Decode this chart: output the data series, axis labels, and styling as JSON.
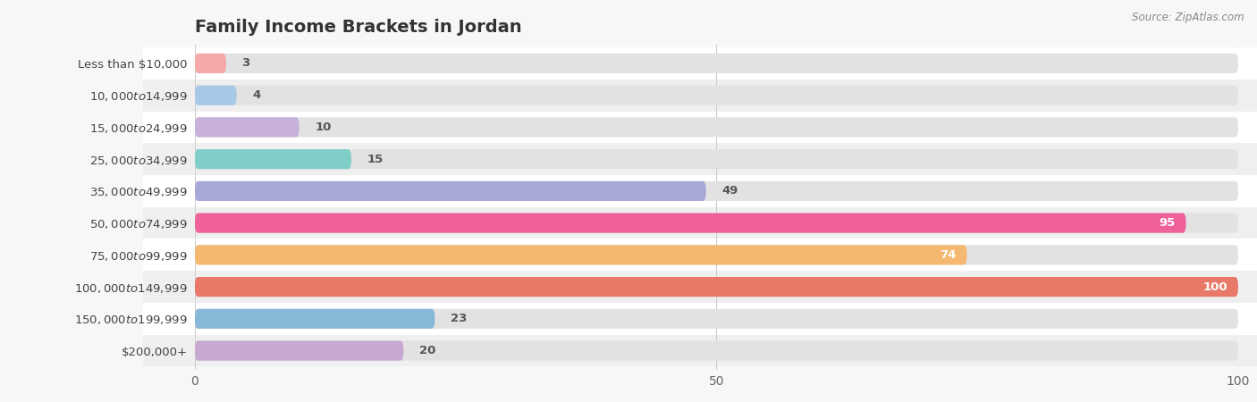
{
  "title": "Family Income Brackets in Jordan",
  "source": "Source: ZipAtlas.com",
  "categories": [
    "Less than $10,000",
    "$10,000 to $14,999",
    "$15,000 to $24,999",
    "$25,000 to $34,999",
    "$35,000 to $49,999",
    "$50,000 to $74,999",
    "$75,000 to $99,999",
    "$100,000 to $149,999",
    "$150,000 to $199,999",
    "$200,000+"
  ],
  "values": [
    3,
    4,
    10,
    15,
    49,
    95,
    74,
    100,
    23,
    20
  ],
  "bar_colors": [
    "#F5A8A8",
    "#A8C8E8",
    "#C8B0DC",
    "#80CEC8",
    "#A8A8D8",
    "#F0609A",
    "#F4B870",
    "#E87868",
    "#88B8D8",
    "#C8A8D0"
  ],
  "value_label_colors": [
    "#666666",
    "#666666",
    "#666666",
    "#666666",
    "#666666",
    "#ffffff",
    "#ffffff",
    "#ffffff",
    "#666666",
    "#666666"
  ],
  "xlim": [
    0,
    100
  ],
  "background_color": "#f7f7f7",
  "row_colors": [
    "#ffffff",
    "#efefef"
  ],
  "bar_bg_color": "#e2e2e2",
  "title_fontsize": 14,
  "label_fontsize": 9.5,
  "value_fontsize": 9.5,
  "xticks": [
    0,
    50,
    100
  ]
}
